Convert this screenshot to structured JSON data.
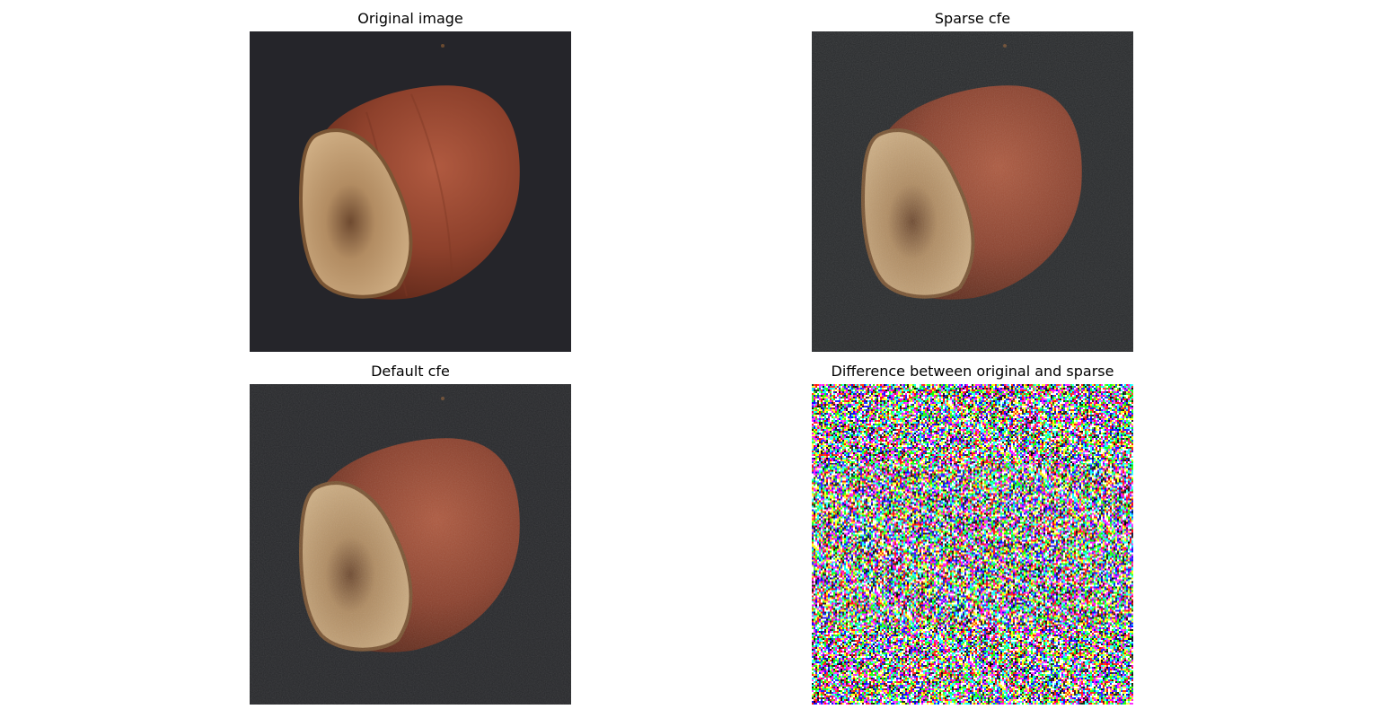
{
  "panels": [
    {
      "title": "Original image",
      "variant": "original"
    },
    {
      "title": "Sparse cfe",
      "variant": "sparse"
    },
    {
      "title": "Default cfe",
      "variant": "default"
    },
    {
      "title": "Difference between original and sparse",
      "variant": "difference"
    }
  ],
  "colors": {
    "background_dark": "#25252a",
    "shell": "#8a3f2a",
    "shell_highlight": "#b05a40",
    "base": "#c9a57a",
    "base_dark": "#8d6a48"
  }
}
